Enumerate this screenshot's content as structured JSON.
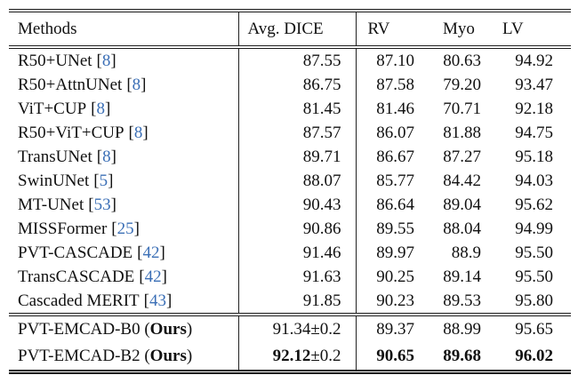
{
  "colors": {
    "citation_blue": "#3b6fb6",
    "rule_black": "#1b1b1b",
    "text_black": "#111111"
  },
  "table": {
    "headers": {
      "methods": "Methods",
      "avg_dice": "Avg. DICE",
      "rv": "RV",
      "myo": "Myo",
      "lv": "LV"
    },
    "brackets": {
      "open": "[",
      "close": "]"
    },
    "rows": [
      {
        "method": "R50+UNet",
        "cite": "8",
        "dice": "87.55",
        "rv": "87.10",
        "myo": "80.63",
        "lv": "94.92"
      },
      {
        "method": "R50+AttnUNet",
        "cite": "8",
        "dice": "86.75",
        "rv": "87.58",
        "myo": "79.20",
        "lv": "93.47"
      },
      {
        "method": "ViT+CUP",
        "cite": "8",
        "dice": "81.45",
        "rv": "81.46",
        "myo": "70.71",
        "lv": "92.18"
      },
      {
        "method": "R50+ViT+CUP",
        "cite": "8",
        "dice": "87.57",
        "rv": "86.07",
        "myo": "81.88",
        "lv": "94.75"
      },
      {
        "method": "TransUNet",
        "cite": "8",
        "dice": "89.71",
        "rv": "86.67",
        "myo": "87.27",
        "lv": "95.18"
      },
      {
        "method": "SwinUNet",
        "cite": "5",
        "dice": "88.07",
        "rv": "85.77",
        "myo": "84.42",
        "lv": "94.03"
      },
      {
        "method": "MT-UNet",
        "cite": "53",
        "dice": "90.43",
        "rv": "86.64",
        "myo": "89.04",
        "lv": "95.62"
      },
      {
        "method": "MISSFormer",
        "cite": "25",
        "dice": "90.86",
        "rv": "89.55",
        "myo": "88.04",
        "lv": "94.99"
      },
      {
        "method": "PVT-CASCADE",
        "cite": "42",
        "dice": "91.46",
        "rv": "89.97",
        "myo": "88.9",
        "lv": "95.50"
      },
      {
        "method": "TransCASCADE",
        "cite": "42",
        "dice": "91.63",
        "rv": "90.25",
        "myo": "89.14",
        "lv": "95.50"
      },
      {
        "method": "Cascaded MERIT",
        "cite": "43",
        "dice": "91.85",
        "rv": "90.23",
        "myo": "89.53",
        "lv": "95.80"
      }
    ],
    "ours": [
      {
        "name": "PVT-EMCAD-B0",
        "open": " (",
        "ours": "Ours",
        "close": ")",
        "dice": "91.34",
        "pm": "±0.2",
        "rv": "89.37",
        "myo": "88.99",
        "lv": "95.65"
      },
      {
        "name": "PVT-EMCAD-B2",
        "open": " (",
        "ours": "Ours",
        "close": ")",
        "dice": "92.12",
        "pm": "±0.2",
        "rv": "90.65",
        "myo": "89.68",
        "lv": "96.02"
      }
    ]
  }
}
